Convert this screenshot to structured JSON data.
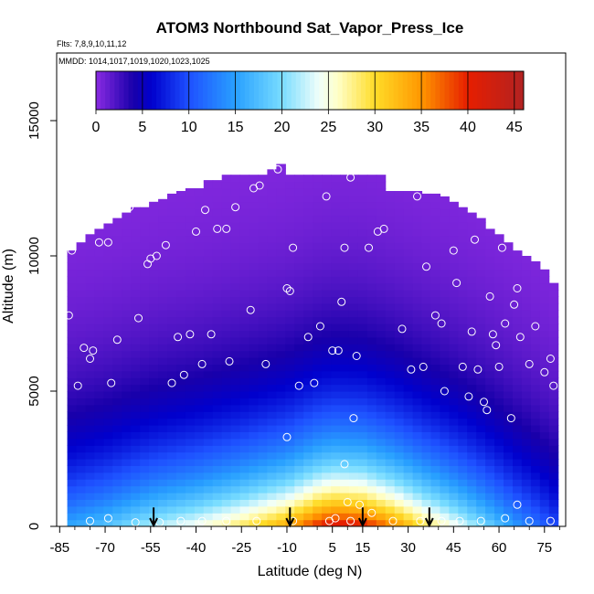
{
  "chart_data": {
    "type": "heatmap",
    "title": "ATOM3 Northbound Sat_Vapor_Press_Ice",
    "flights_label": "Flts: 7,8,9,10,11,12",
    "dates_label": "MMDD: 1014,1017,1019,1020,1023,1025",
    "xlabel": "Latitude (deg N)",
    "ylabel": "Altitude (m)",
    "xlim": [
      -86,
      82
    ],
    "ylim": [
      0,
      17500
    ],
    "x_ticks": [
      -85,
      -70,
      -55,
      -40,
      -25,
      -10,
      5,
      15,
      30,
      45,
      60,
      75
    ],
    "x_tick_labels": [
      "-85",
      "-70",
      "-55",
      "-40",
      "-25",
      "-10",
      "5",
      "15",
      "30",
      "45",
      "60",
      "75"
    ],
    "y_ticks": [
      0,
      5000,
      10000,
      15000
    ],
    "y_tick_labels": [
      "0",
      "5000",
      "10000",
      "15000"
    ],
    "colorbar": {
      "min": 0,
      "max": 46,
      "ticks": [
        0,
        5,
        10,
        15,
        20,
        25,
        30,
        35,
        40,
        45
      ],
      "tick_labels": [
        "0",
        "5",
        "10",
        "15",
        "20",
        "25",
        "30",
        "35",
        "40",
        "45"
      ],
      "position": "top"
    },
    "colors": {
      "low": "#8a2be2",
      "mid": "#ffffe0",
      "high": "#b22222",
      "markers": "#ffffff",
      "arrows": "#000000"
    },
    "arrow_latitudes": [
      -54,
      -9,
      15,
      37
    ],
    "column_tops_m": [
      {
        "lat": -81,
        "top": 10200
      },
      {
        "lat": -78,
        "top": 10500
      },
      {
        "lat": -75,
        "top": 10800
      },
      {
        "lat": -72,
        "top": 11000
      },
      {
        "lat": -69,
        "top": 11200
      },
      {
        "lat": -66,
        "top": 11400
      },
      {
        "lat": -63,
        "top": 11600
      },
      {
        "lat": -60,
        "top": 11800
      },
      {
        "lat": -57,
        "top": 11800
      },
      {
        "lat": -54,
        "top": 12000
      },
      {
        "lat": -51,
        "top": 12100
      },
      {
        "lat": -48,
        "top": 12300
      },
      {
        "lat": -45,
        "top": 12400
      },
      {
        "lat": -42,
        "top": 12500
      },
      {
        "lat": -39,
        "top": 12500
      },
      {
        "lat": -36,
        "top": 12800
      },
      {
        "lat": -33,
        "top": 12800
      },
      {
        "lat": -30,
        "top": 13000
      },
      {
        "lat": -27,
        "top": 13000
      },
      {
        "lat": -24,
        "top": 13000
      },
      {
        "lat": -21,
        "top": 13000
      },
      {
        "lat": -18,
        "top": 13000
      },
      {
        "lat": -15,
        "top": 13200
      },
      {
        "lat": -12,
        "top": 13400
      },
      {
        "lat": -9,
        "top": 13000
      },
      {
        "lat": -6,
        "top": 13000
      },
      {
        "lat": -3,
        "top": 13000
      },
      {
        "lat": 0,
        "top": 13000
      },
      {
        "lat": 3,
        "top": 13000
      },
      {
        "lat": 6,
        "top": 13000
      },
      {
        "lat": 9,
        "top": 13000
      },
      {
        "lat": 12,
        "top": 13000
      },
      {
        "lat": 15,
        "top": 13000
      },
      {
        "lat": 18,
        "top": 13000
      },
      {
        "lat": 21,
        "top": 13000
      },
      {
        "lat": 24,
        "top": 12400
      },
      {
        "lat": 27,
        "top": 12400
      },
      {
        "lat": 30,
        "top": 12400
      },
      {
        "lat": 33,
        "top": 12400
      },
      {
        "lat": 36,
        "top": 12300
      },
      {
        "lat": 39,
        "top": 12300
      },
      {
        "lat": 42,
        "top": 12200
      },
      {
        "lat": 45,
        "top": 12000
      },
      {
        "lat": 48,
        "top": 11800
      },
      {
        "lat": 51,
        "top": 11600
      },
      {
        "lat": 54,
        "top": 11400
      },
      {
        "lat": 57,
        "top": 11000
      },
      {
        "lat": 60,
        "top": 10800
      },
      {
        "lat": 63,
        "top": 10500
      },
      {
        "lat": 66,
        "top": 10200
      },
      {
        "lat": 69,
        "top": 10000
      },
      {
        "lat": 72,
        "top": 9800
      },
      {
        "lat": 75,
        "top": 9500
      },
      {
        "lat": 78,
        "top": 9000
      }
    ],
    "surface_value_profile": [
      {
        "lat": -81,
        "value": 16
      },
      {
        "lat": -70,
        "value": 18
      },
      {
        "lat": -55,
        "value": 22
      },
      {
        "lat": -40,
        "value": 25
      },
      {
        "lat": -25,
        "value": 29
      },
      {
        "lat": -10,
        "value": 34
      },
      {
        "lat": 0,
        "value": 40
      },
      {
        "lat": 5,
        "value": 42
      },
      {
        "lat": 15,
        "value": 41
      },
      {
        "lat": 25,
        "value": 36
      },
      {
        "lat": 35,
        "value": 30
      },
      {
        "lat": 45,
        "value": 25
      },
      {
        "lat": 55,
        "value": 20
      },
      {
        "lat": 65,
        "value": 15
      },
      {
        "lat": 78,
        "value": 10
      }
    ],
    "decay_scale_m": 3000,
    "observations": [
      {
        "lat": -82,
        "alt": 7800
      },
      {
        "lat": -81,
        "alt": 10200
      },
      {
        "lat": -79,
        "alt": 5200
      },
      {
        "lat": -77,
        "alt": 6600
      },
      {
        "lat": -75,
        "alt": 6200
      },
      {
        "lat": -74,
        "alt": 6500
      },
      {
        "lat": -72,
        "alt": 10500
      },
      {
        "lat": -69,
        "alt": 10500
      },
      {
        "lat": -68,
        "alt": 5300
      },
      {
        "lat": -66,
        "alt": 6900
      },
      {
        "lat": -62,
        "alt": 11800
      },
      {
        "lat": -59,
        "alt": 7700
      },
      {
        "lat": -56,
        "alt": 9700
      },
      {
        "lat": -55,
        "alt": 9900
      },
      {
        "lat": -53,
        "alt": 10000
      },
      {
        "lat": -50,
        "alt": 10400
      },
      {
        "lat": -48,
        "alt": 5300
      },
      {
        "lat": -46,
        "alt": 7000
      },
      {
        "lat": -44,
        "alt": 5600
      },
      {
        "lat": -42,
        "alt": 7100
      },
      {
        "lat": -40,
        "alt": 10900
      },
      {
        "lat": -38,
        "alt": 6000
      },
      {
        "lat": -37,
        "alt": 11700
      },
      {
        "lat": -35,
        "alt": 7100
      },
      {
        "lat": -33,
        "alt": 11000
      },
      {
        "lat": -30,
        "alt": 11000
      },
      {
        "lat": -29,
        "alt": 6100
      },
      {
        "lat": -27,
        "alt": 11800
      },
      {
        "lat": -22,
        "alt": 8000
      },
      {
        "lat": -21,
        "alt": 12500
      },
      {
        "lat": -19,
        "alt": 12600
      },
      {
        "lat": -17,
        "alt": 6000
      },
      {
        "lat": -13,
        "alt": 13200
      },
      {
        "lat": -10,
        "alt": 8800
      },
      {
        "lat": -9,
        "alt": 8700
      },
      {
        "lat": -8,
        "alt": 10300
      },
      {
        "lat": -6,
        "alt": 5200
      },
      {
        "lat": -3,
        "alt": 7000
      },
      {
        "lat": -1,
        "alt": 5300
      },
      {
        "lat": 1,
        "alt": 7400
      },
      {
        "lat": 3,
        "alt": 12200
      },
      {
        "lat": 5,
        "alt": 6500
      },
      {
        "lat": 7,
        "alt": 6500
      },
      {
        "lat": 8,
        "alt": 8300
      },
      {
        "lat": 9,
        "alt": 10300
      },
      {
        "lat": 11,
        "alt": 12900
      },
      {
        "lat": 12,
        "alt": 4000
      },
      {
        "lat": 13,
        "alt": 6300
      },
      {
        "lat": 17,
        "alt": 10300
      },
      {
        "lat": 20,
        "alt": 10900
      },
      {
        "lat": 22,
        "alt": 11000
      },
      {
        "lat": 28,
        "alt": 7300
      },
      {
        "lat": 31,
        "alt": 5800
      },
      {
        "lat": 33,
        "alt": 12200
      },
      {
        "lat": 35,
        "alt": 5900
      },
      {
        "lat": 36,
        "alt": 9600
      },
      {
        "lat": 39,
        "alt": 7800
      },
      {
        "lat": 41,
        "alt": 7500
      },
      {
        "lat": 42,
        "alt": 5000
      },
      {
        "lat": 45,
        "alt": 10200
      },
      {
        "lat": 46,
        "alt": 9000
      },
      {
        "lat": 48,
        "alt": 5900
      },
      {
        "lat": 49,
        "alt": 12000
      },
      {
        "lat": 50,
        "alt": 4800
      },
      {
        "lat": 51,
        "alt": 7200
      },
      {
        "lat": 52,
        "alt": 10600
      },
      {
        "lat": 53,
        "alt": 5800
      },
      {
        "lat": 55,
        "alt": 4600
      },
      {
        "lat": 56,
        "alt": 4300
      },
      {
        "lat": 57,
        "alt": 8500
      },
      {
        "lat": 58,
        "alt": 7100
      },
      {
        "lat": 59,
        "alt": 6700
      },
      {
        "lat": 60,
        "alt": 5900
      },
      {
        "lat": 61,
        "alt": 10300
      },
      {
        "lat": 62,
        "alt": 7500
      },
      {
        "lat": 64,
        "alt": 4000
      },
      {
        "lat": 65,
        "alt": 8200
      },
      {
        "lat": 66,
        "alt": 8800
      },
      {
        "lat": 67,
        "alt": 7000
      },
      {
        "lat": 70,
        "alt": 6000
      },
      {
        "lat": 72,
        "alt": 7400
      },
      {
        "lat": 75,
        "alt": 5700
      },
      {
        "lat": 77,
        "alt": 6200
      },
      {
        "lat": 78,
        "alt": 5200
      },
      {
        "lat": -60,
        "alt": 150
      },
      {
        "lat": -52,
        "alt": 150
      },
      {
        "lat": -45,
        "alt": 200
      },
      {
        "lat": -38,
        "alt": 200
      },
      {
        "lat": -30,
        "alt": 200
      },
      {
        "lat": -20,
        "alt": 200
      },
      {
        "lat": -8,
        "alt": 200
      },
      {
        "lat": 4,
        "alt": 200
      },
      {
        "lat": 6,
        "alt": 300
      },
      {
        "lat": 10,
        "alt": 900
      },
      {
        "lat": 11,
        "alt": 200
      },
      {
        "lat": 14,
        "alt": 800
      },
      {
        "lat": 18,
        "alt": 500
      },
      {
        "lat": 25,
        "alt": 200
      },
      {
        "lat": 34,
        "alt": 200
      },
      {
        "lat": 41,
        "alt": 200
      },
      {
        "lat": 47,
        "alt": 200
      },
      {
        "lat": 54,
        "alt": 200
      },
      {
        "lat": 62,
        "alt": 300
      },
      {
        "lat": 66,
        "alt": 800
      },
      {
        "lat": 70,
        "alt": 200
      },
      {
        "lat": 77,
        "alt": 200
      },
      {
        "lat": -10,
        "alt": 3300
      },
      {
        "lat": 9,
        "alt": 2300
      },
      {
        "lat": -75,
        "alt": 200
      },
      {
        "lat": -69,
        "alt": 300
      }
    ]
  }
}
